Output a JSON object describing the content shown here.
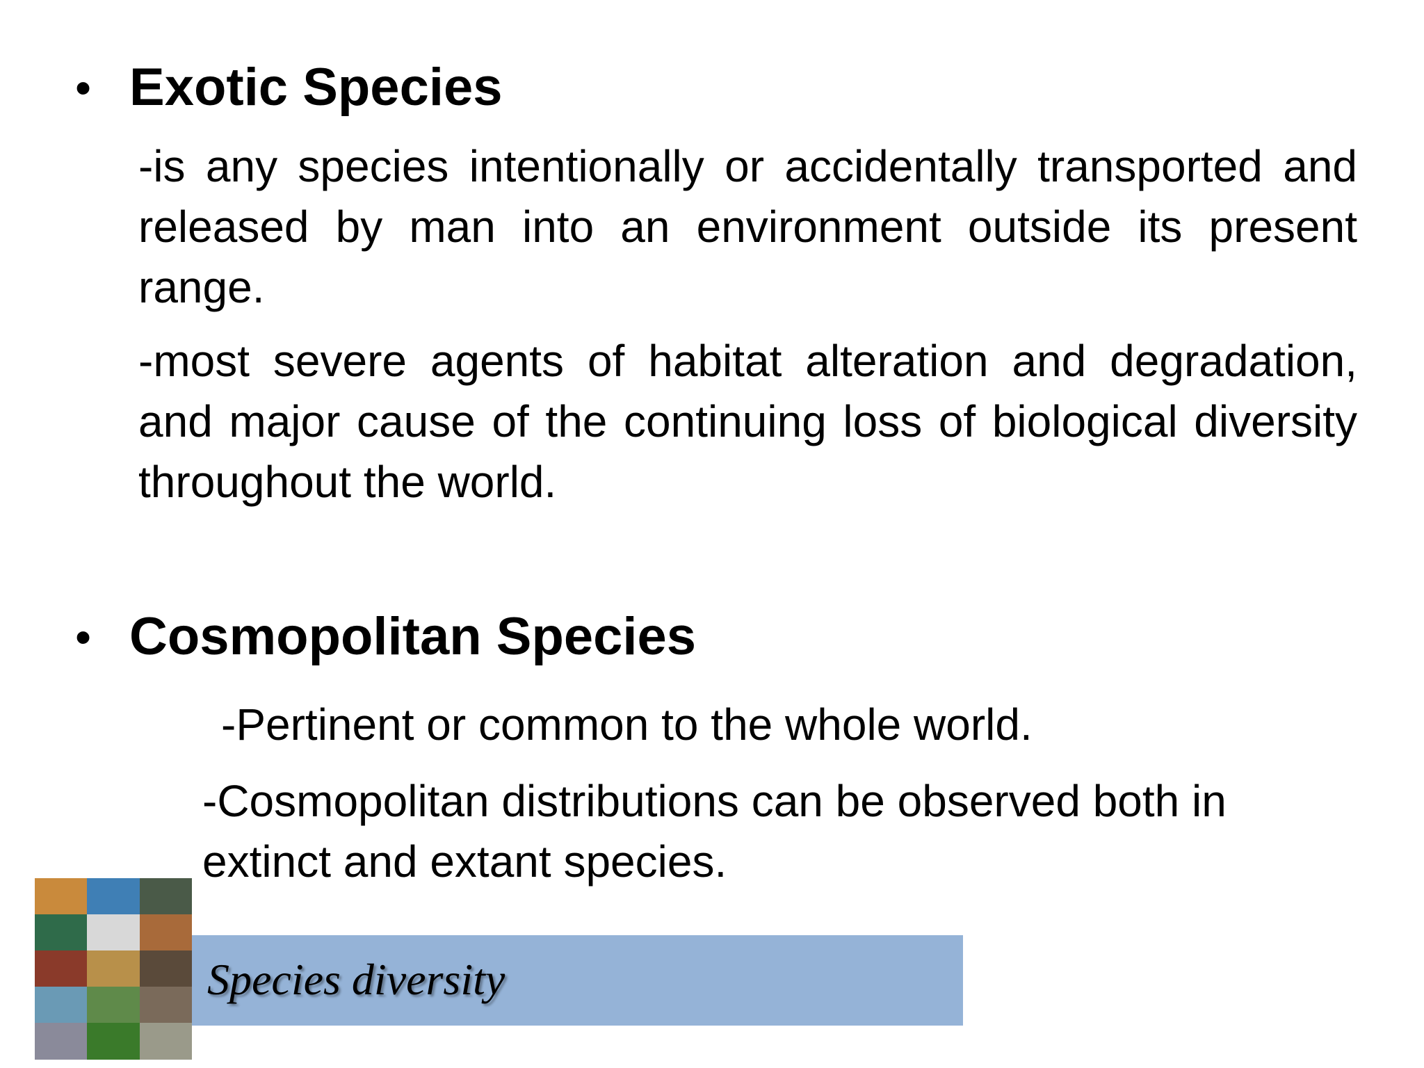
{
  "sections": [
    {
      "heading": "Exotic Species",
      "paragraphs": [
        "-is any species intentionally or accidentally transported and released by man into an environment outside its present range.",
        "-most severe agents of habitat alteration and degradation, and major cause of the continuing loss of biological diversity throughout the world."
      ]
    },
    {
      "heading": "Cosmopolitan Species",
      "paragraphs": [
        "-Pertinent or common to the whole world.",
        "-Cosmopolitan distributions can be observed both in extinct and extant species."
      ]
    }
  ],
  "banner": {
    "text": "Species diversity"
  }
}
